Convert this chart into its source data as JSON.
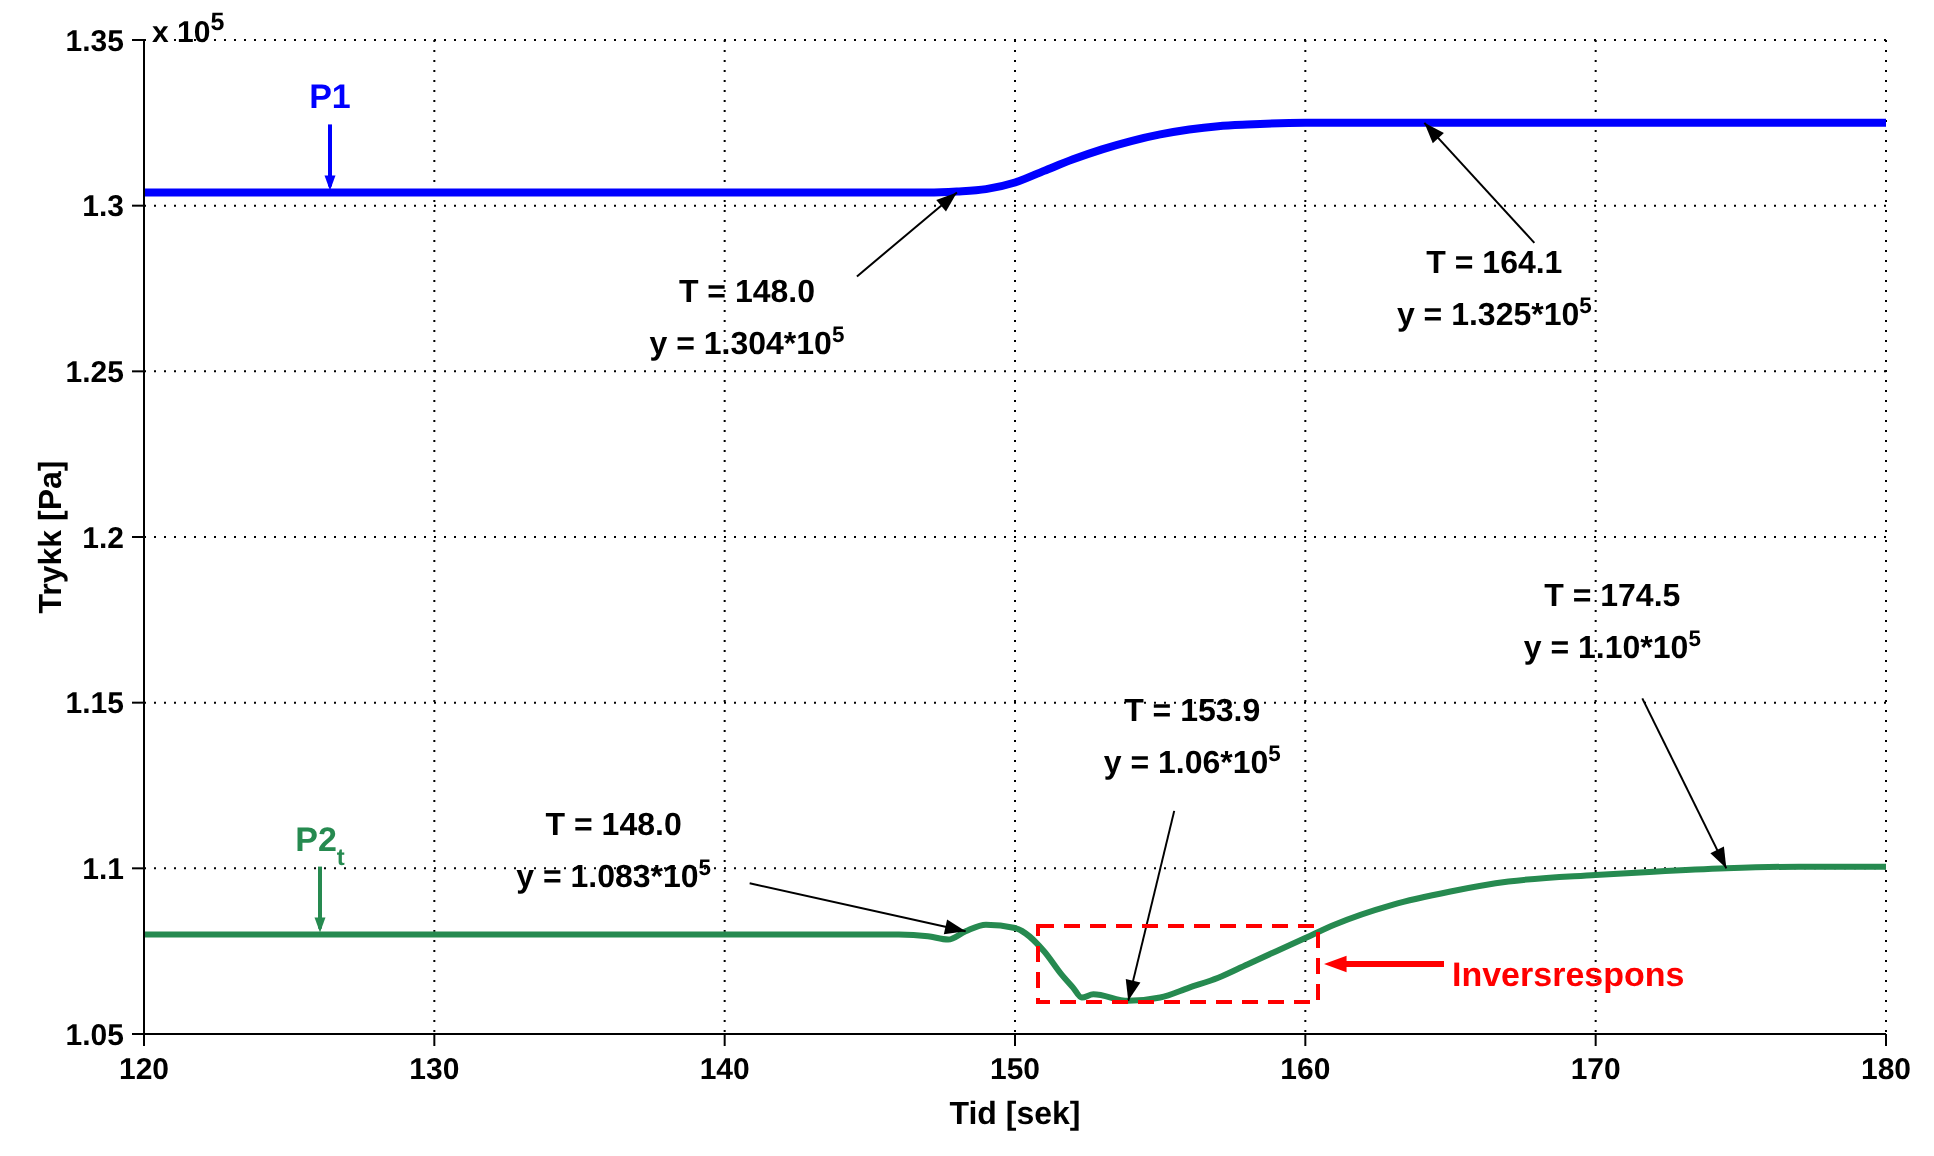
{
  "chart_data": {
    "type": "line",
    "xlabel": "Tid [sek]",
    "ylabel": "Trykk [Pa]",
    "xlim": [
      120,
      180
    ],
    "xticks": [
      120,
      130,
      140,
      150,
      160,
      170,
      180
    ],
    "ylim": [
      1.05,
      1.35
    ],
    "yticks": [
      1.05,
      1.1,
      1.15,
      1.2,
      1.25,
      1.3,
      1.35
    ],
    "grid": true,
    "legend": false,
    "series": [
      {
        "name": "P1",
        "color": "#0000ff",
        "x": [
          120,
          147,
          148,
          149,
          150,
          151,
          152,
          153,
          154,
          155,
          156,
          157,
          158,
          160,
          164.1,
          170,
          180
        ],
        "values": [
          1.304,
          1.304,
          1.3043,
          1.305,
          1.307,
          1.3105,
          1.314,
          1.317,
          1.3195,
          1.3215,
          1.323,
          1.324,
          1.3245,
          1.325,
          1.325,
          1.325,
          1.325
        ]
      },
      {
        "name": "P2$_{t}$",
        "color": "#268a50",
        "x": [
          120,
          146,
          147,
          147.7,
          148.3,
          149,
          150,
          151,
          151.6,
          152,
          152.3,
          152.7,
          153.9,
          155,
          156,
          157,
          158,
          159,
          160,
          161,
          163,
          165,
          167,
          170,
          172,
          174.5,
          177,
          180
        ],
        "values": [
          1.08,
          1.08,
          1.0795,
          1.0785,
          1.081,
          1.083,
          1.082,
          1.075,
          1.068,
          1.064,
          1.061,
          1.062,
          1.06,
          1.061,
          1.064,
          1.067,
          1.071,
          1.075,
          1.079,
          1.083,
          1.089,
          1.093,
          1.096,
          1.098,
          1.099,
          1.1,
          1.1005,
          1.1005
        ]
      }
    ],
    "annotations": [
      "x 10$^{5}$",
      {
        "text": "T = 148.0\ny = 1.304*10$^{5}$",
        "x": 148,
        "y": 1.304
      },
      {
        "text": "T = 164.1\ny = 1.325*10$^{5}$",
        "x": 164.1,
        "y": 1.325
      },
      {
        "text": "T = 148.0\ny = 1.083*10$^{5}$",
        "x": 148.3,
        "y": 1.081
      },
      {
        "text": "T = 153.9\ny = 1.06*10$^{5}$",
        "x": 153.9,
        "y": 1.06
      },
      {
        "text": "T = 174.5\ny = 1.10*10$^{5}$",
        "x": 174.5,
        "y": 1.1
      },
      "Inversrespons"
    ]
  }
}
